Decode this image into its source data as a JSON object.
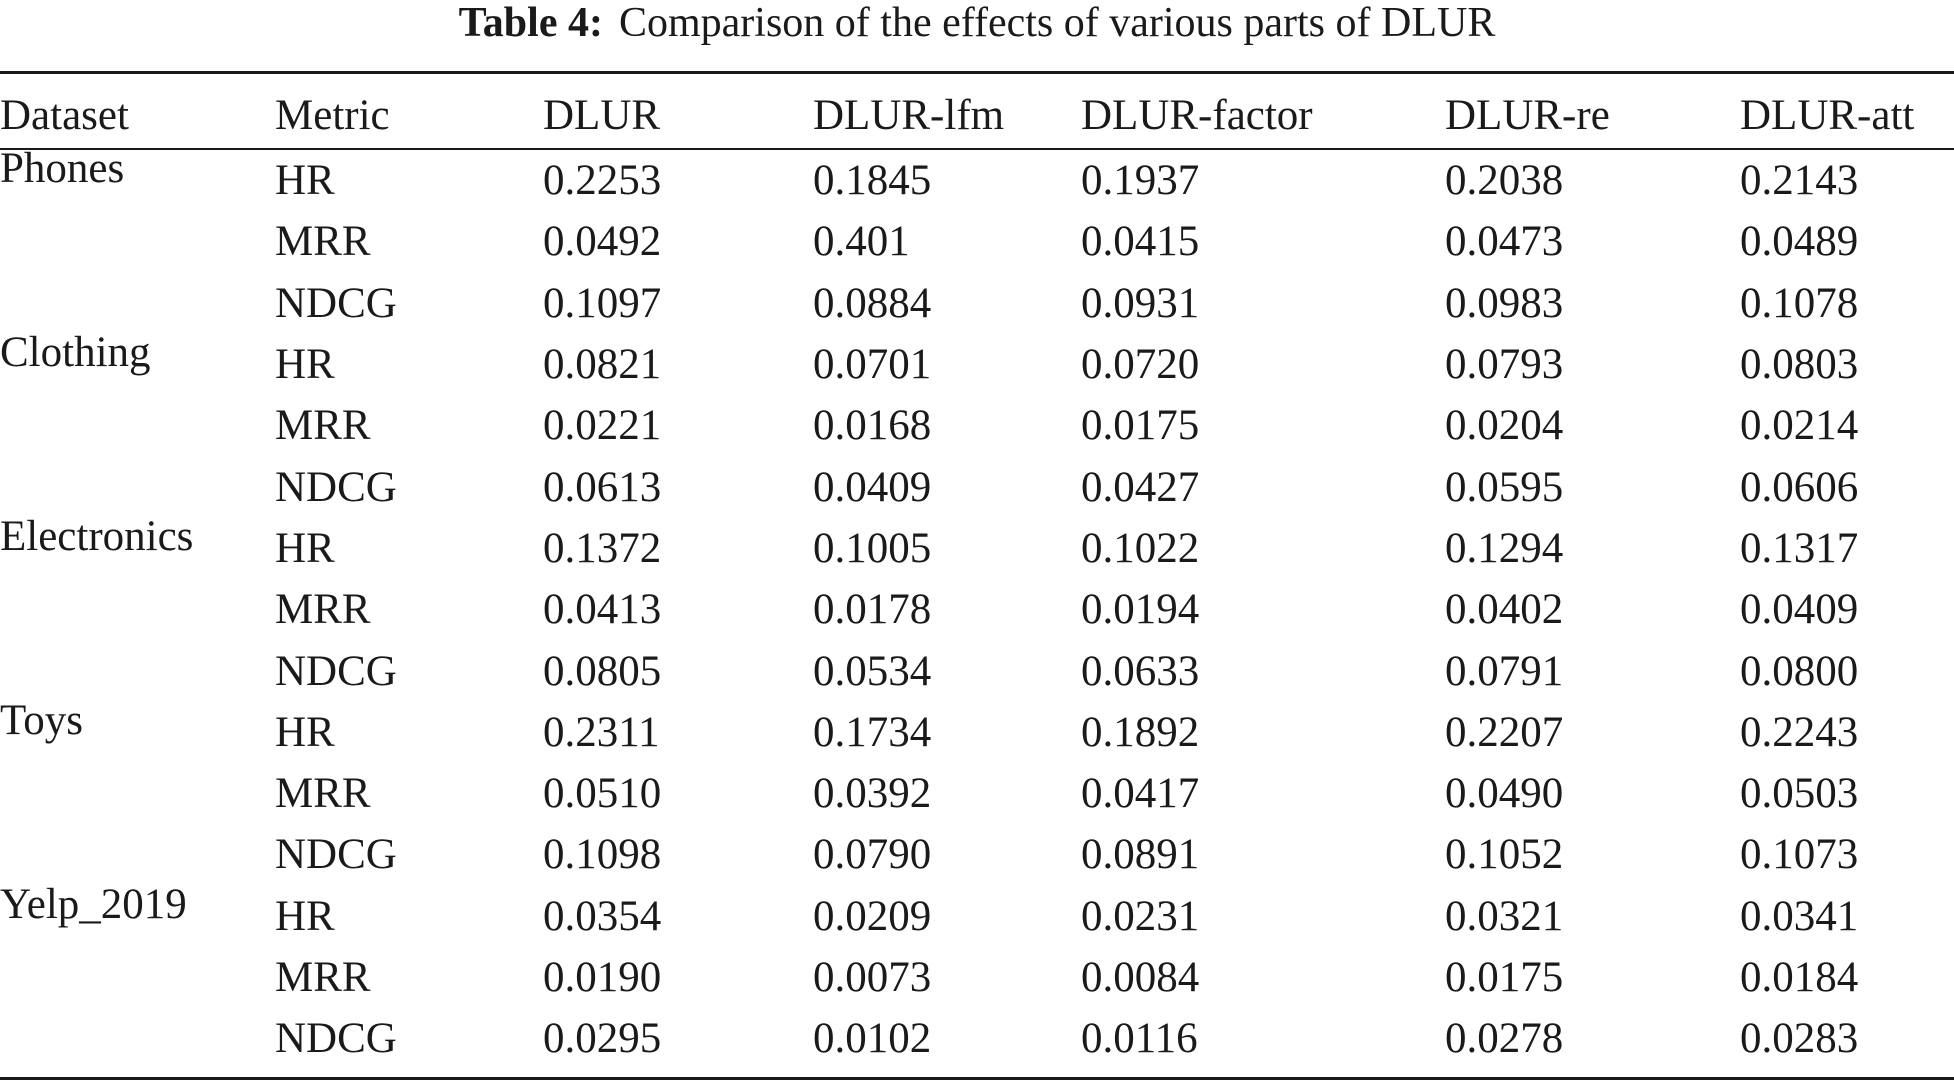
{
  "caption": {
    "label": "Table 4:",
    "text": "Comparison of the effects of various parts of DLUR"
  },
  "table": {
    "headers": [
      "Dataset",
      "Metric",
      "DLUR",
      "DLUR-lfm",
      "DLUR-factor",
      "DLUR-re",
      "DLUR-att"
    ],
    "groups": [
      {
        "dataset": "Phones",
        "rows": [
          [
            "HR",
            "0.2253",
            "0.1845",
            "0.1937",
            "0.2038",
            "0.2143"
          ],
          [
            "MRR",
            "0.0492",
            "0.401",
            "0.0415",
            "0.0473",
            "0.0489"
          ],
          [
            "NDCG",
            "0.1097",
            "0.0884",
            "0.0931",
            "0.0983",
            "0.1078"
          ]
        ]
      },
      {
        "dataset": "Clothing",
        "rows": [
          [
            "HR",
            "0.0821",
            "0.0701",
            "0.0720",
            "0.0793",
            "0.0803"
          ],
          [
            "MRR",
            "0.0221",
            "0.0168",
            "0.0175",
            "0.0204",
            "0.0214"
          ],
          [
            "NDCG",
            "0.0613",
            "0.0409",
            "0.0427",
            "0.0595",
            "0.0606"
          ]
        ]
      },
      {
        "dataset": "Electronics",
        "rows": [
          [
            "HR",
            "0.1372",
            "0.1005",
            "0.1022",
            "0.1294",
            "0.1317"
          ],
          [
            "MRR",
            "0.0413",
            "0.0178",
            "0.0194",
            "0.0402",
            "0.0409"
          ],
          [
            "NDCG",
            "0.0805",
            "0.0534",
            "0.0633",
            "0.0791",
            "0.0800"
          ]
        ]
      },
      {
        "dataset": "Toys",
        "rows": [
          [
            "HR",
            "0.2311",
            "0.1734",
            "0.1892",
            "0.2207",
            "0.2243"
          ],
          [
            "MRR",
            "0.0510",
            "0.0392",
            "0.0417",
            "0.0490",
            "0.0503"
          ],
          [
            "NDCG",
            "0.1098",
            "0.0790",
            "0.0891",
            "0.1052",
            "0.1073"
          ]
        ]
      },
      {
        "dataset": "Yelp_2019",
        "rows": [
          [
            "HR",
            "0.0354",
            "0.0209",
            "0.0231",
            "0.0321",
            "0.0341"
          ],
          [
            "MRR",
            "0.0190",
            "0.0073",
            "0.0084",
            "0.0175",
            "0.0184"
          ],
          [
            "NDCG",
            "0.0295",
            "0.0102",
            "0.0116",
            "0.0278",
            "0.0283"
          ]
        ]
      }
    ]
  }
}
